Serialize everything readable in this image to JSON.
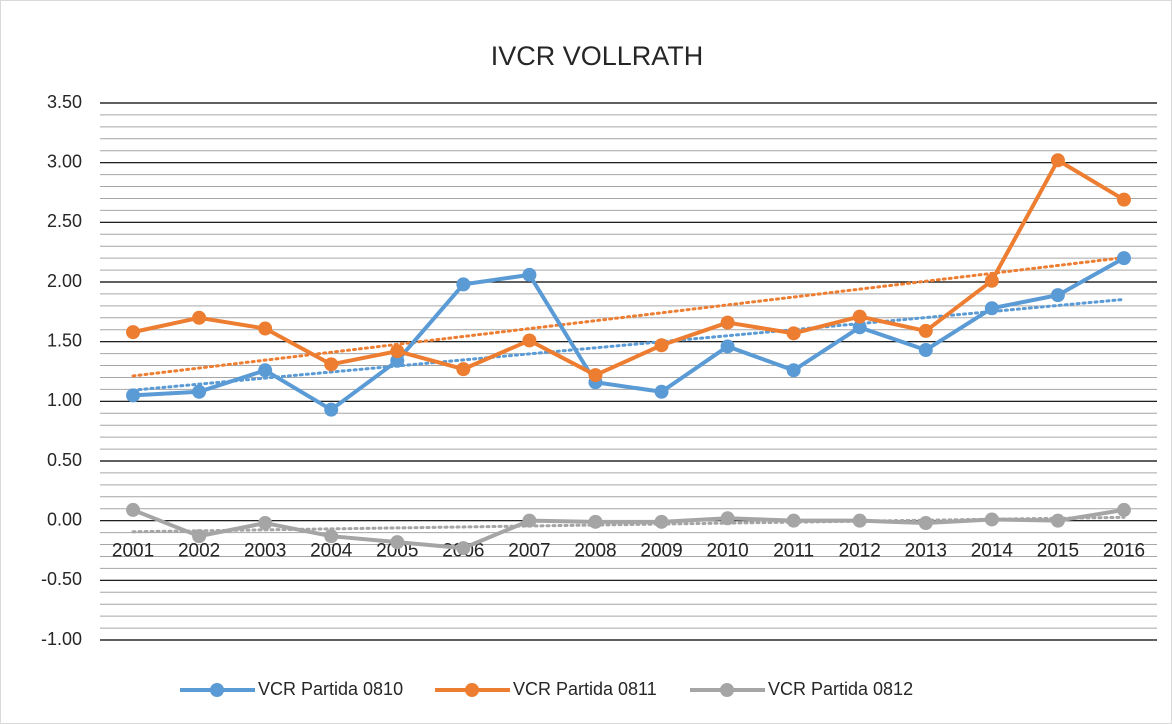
{
  "chart_data": {
    "type": "line",
    "title": "IVCR VOLLRATH",
    "categories": [
      "2001",
      "2002",
      "2003",
      "2004",
      "2005",
      "2006",
      "2007",
      "2008",
      "2009",
      "2010",
      "2011",
      "2012",
      "2013",
      "2014",
      "2015",
      "2016"
    ],
    "series": [
      {
        "name": "VCR Partida 0810",
        "color": "#5b9bd5",
        "values": [
          1.05,
          1.08,
          1.26,
          0.93,
          1.34,
          1.98,
          2.06,
          1.16,
          1.08,
          1.46,
          1.26,
          1.62,
          1.43,
          1.78,
          1.89,
          2.2
        ]
      },
      {
        "name": "VCR Partida 0811",
        "color": "#ed7d31",
        "values": [
          1.58,
          1.7,
          1.61,
          1.31,
          1.42,
          1.27,
          1.51,
          1.22,
          1.47,
          1.66,
          1.57,
          1.71,
          1.59,
          2.01,
          3.02,
          2.69
        ]
      },
      {
        "name": "VCR Partida 0812",
        "color": "#a5a5a5",
        "values": [
          0.09,
          -0.13,
          -0.02,
          -0.13,
          -0.18,
          -0.23,
          0.0,
          -0.01,
          -0.01,
          0.02,
          0.0,
          0.0,
          -0.02,
          0.01,
          0.0,
          0.09
        ]
      }
    ],
    "ylim": [
      -1,
      3.5
    ],
    "yticks": [
      {
        "value": -1,
        "label": "-1.00"
      },
      {
        "value": -0.5,
        "label": "-0.50"
      },
      {
        "value": 0,
        "label": "0.00"
      },
      {
        "value": 0.5,
        "label": "0.50"
      },
      {
        "value": 1,
        "label": "1.00"
      },
      {
        "value": 1.5,
        "label": "1.50"
      },
      {
        "value": 2,
        "label": "2.00"
      },
      {
        "value": 2.5,
        "label": "2.50"
      },
      {
        "value": 3,
        "label": "3.00"
      },
      {
        "value": 3.5,
        "label": "3.50"
      }
    ],
    "grid": true,
    "minor_divisions": 5,
    "trendline": true,
    "legend": "bottom"
  }
}
